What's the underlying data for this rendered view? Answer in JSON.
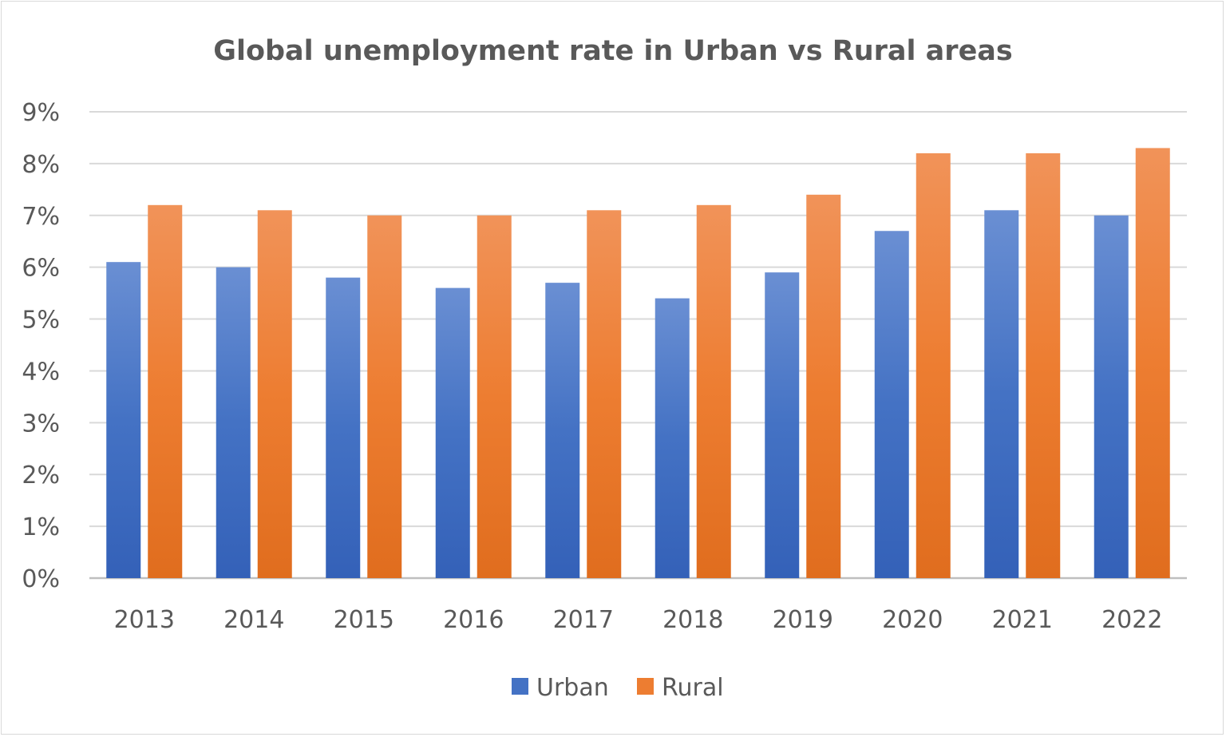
{
  "chart_data": {
    "type": "bar",
    "title": "Global unemployment rate in Urban vs Rural areas",
    "xlabel": "",
    "ylabel": "",
    "categories": [
      "2013",
      "2014",
      "2015",
      "2016",
      "2017",
      "2018",
      "2019",
      "2020",
      "2021",
      "2022"
    ],
    "series": [
      {
        "name": "Urban",
        "color": "#4472c4",
        "values": [
          6.1,
          6.0,
          5.8,
          5.6,
          5.7,
          5.4,
          5.9,
          6.7,
          7.1,
          7.0
        ]
      },
      {
        "name": "Rural",
        "color": "#ed7d31",
        "values": [
          7.2,
          7.1,
          7.0,
          7.0,
          7.1,
          7.2,
          7.4,
          8.2,
          8.2,
          8.3
        ]
      }
    ],
    "ylim": [
      0,
      9
    ],
    "yticks": [
      "0%",
      "1%",
      "2%",
      "3%",
      "4%",
      "5%",
      "6%",
      "7%",
      "8%",
      "9%"
    ],
    "grid": true,
    "legend": "bottom"
  }
}
